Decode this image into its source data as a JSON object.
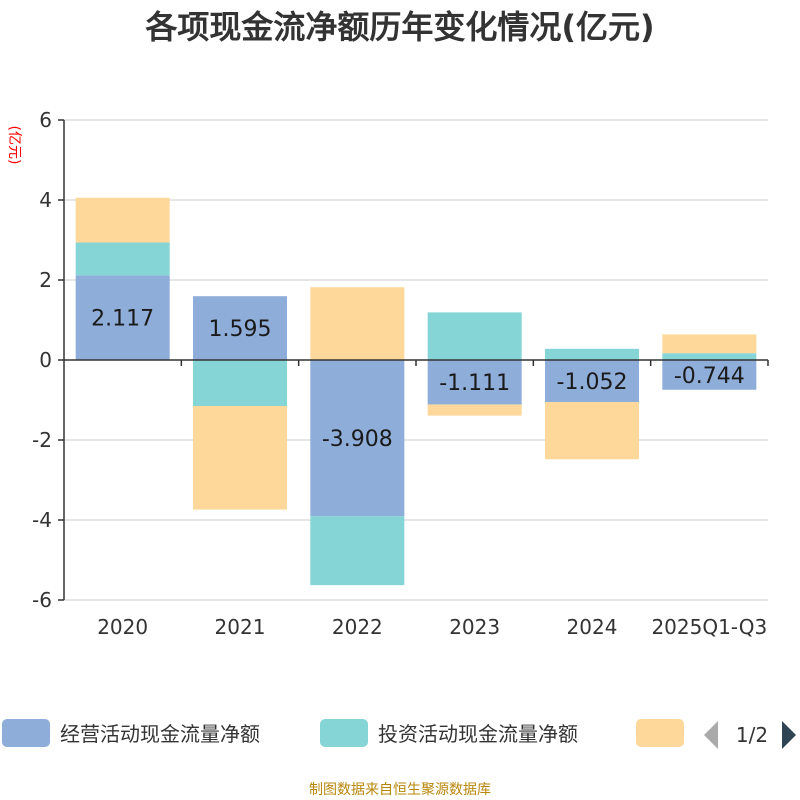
{
  "chart_data": {
    "type": "bar",
    "stacked": true,
    "title": "各项现金流净额历年变化情况(亿元)",
    "ylabel": "(亿元)",
    "xlabel": "",
    "ylim": [
      -6,
      6
    ],
    "yticks": [
      -6,
      -4,
      -2,
      0,
      2,
      4,
      6
    ],
    "grid": true,
    "categories": [
      "2020",
      "2021",
      "2022",
      "2023",
      "2024",
      "2025Q1-Q3"
    ],
    "series": [
      {
        "name": "经营活动现金流量净额",
        "color": "#8eadd9",
        "values": [
          2.117,
          1.595,
          -3.908,
          -1.111,
          -1.052,
          -0.744
        ]
      },
      {
        "name": "投资活动现金流量净额",
        "color": "#86d5d6",
        "values": [
          0.82,
          -1.15,
          -1.72,
          1.19,
          0.28,
          0.17
        ]
      },
      {
        "name": "",
        "color": "#fdd89a",
        "values": [
          1.12,
          -2.59,
          1.82,
          -0.28,
          -1.43,
          0.47
        ]
      }
    ],
    "data_labels": [
      "2.117",
      "1.595",
      "-3.908",
      "-1.111",
      "-1.052",
      "-0.744"
    ],
    "legend_position": "bottom",
    "legend_page": "1/2",
    "source": "制图数据来自恒生聚源数据库"
  }
}
